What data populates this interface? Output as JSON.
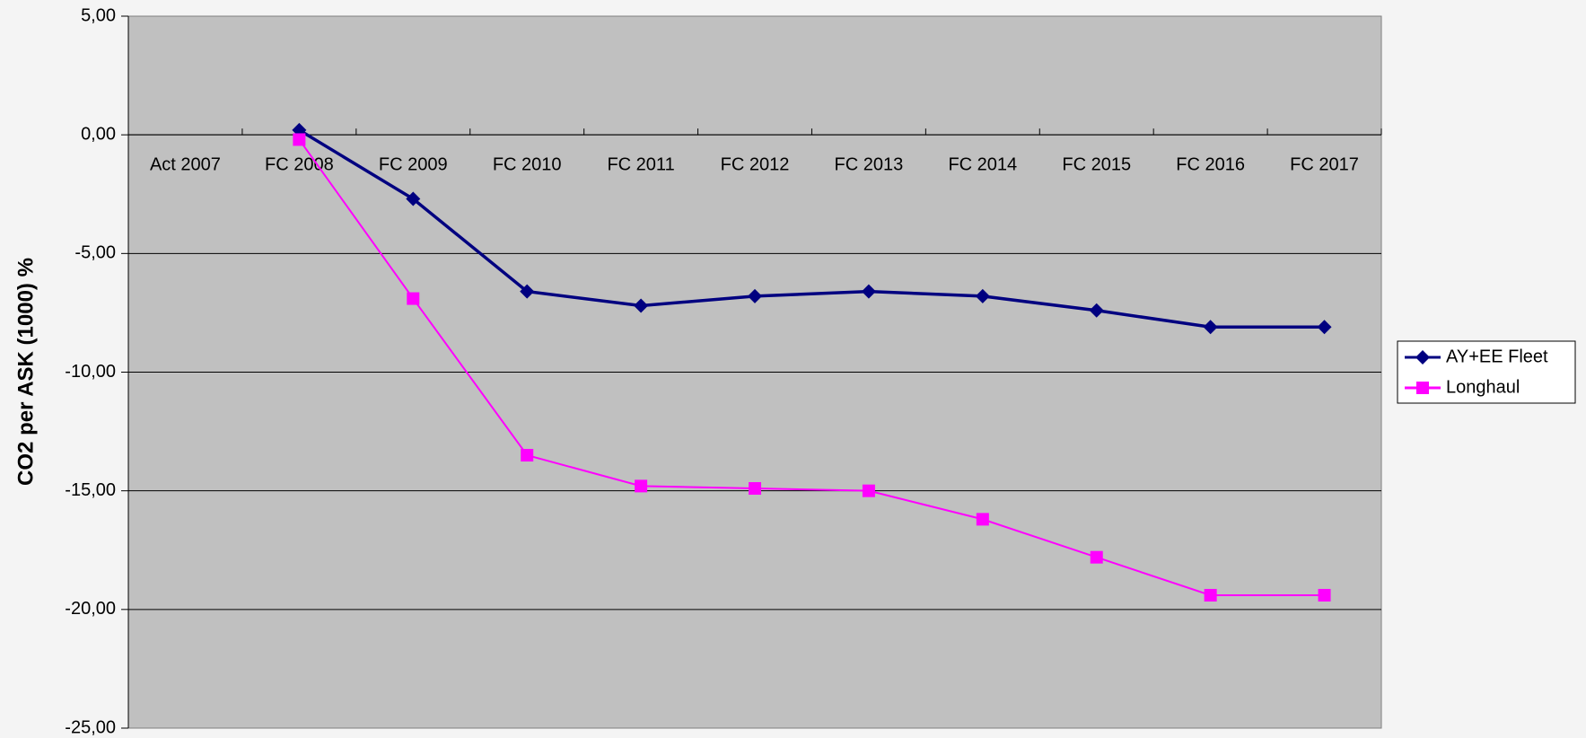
{
  "chart_data": {
    "type": "line",
    "y_label": "CO2 per ASK (1000) %",
    "categories": [
      "Act 2007",
      "FC 2008",
      "FC 2009",
      "FC 2010",
      "FC 2011",
      "FC 2012",
      "FC 2013",
      "FC 2014",
      "FC 2015",
      "FC 2016",
      "FC 2017"
    ],
    "series": [
      {
        "name": "AY+EE Fleet",
        "color": "#000080",
        "marker": "diamond",
        "values": [
          null,
          0.2,
          -2.7,
          -6.6,
          -7.2,
          -6.8,
          -6.6,
          -6.8,
          -7.4,
          -8.1,
          -8.1
        ]
      },
      {
        "name": "Longhaul",
        "color": "#ff00ff",
        "marker": "square",
        "values": [
          null,
          -0.2,
          -6.9,
          -13.5,
          -14.8,
          -14.9,
          -15.0,
          -16.2,
          -17.8,
          -19.4,
          -19.4
        ]
      }
    ],
    "ylim": [
      -25,
      5
    ],
    "yticks": [
      {
        "value": -25,
        "label": "-25,00"
      },
      {
        "value": -20,
        "label": "-20,00"
      },
      {
        "value": -15,
        "label": "-15,00"
      },
      {
        "value": -10,
        "label": "-10,00"
      },
      {
        "value": -5,
        "label": "-5,00"
      },
      {
        "value": 0,
        "label": "0,00"
      },
      {
        "value": 5,
        "label": "5,00"
      }
    ],
    "grid": true,
    "legend": "right"
  }
}
